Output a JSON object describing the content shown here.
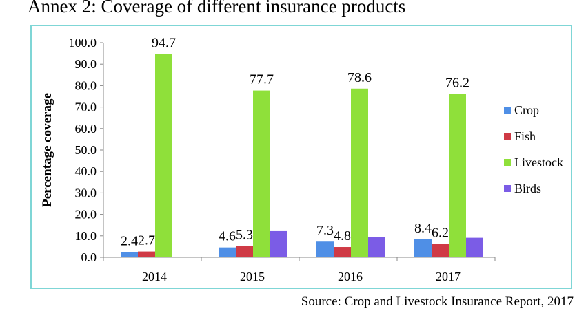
{
  "page": {
    "title": "Annex 2: Coverage of different insurance products",
    "source": "Source: Crop and Livestock Insurance Report, 2017"
  },
  "chart_data": {
    "type": "bar",
    "title": "",
    "xlabel": "",
    "ylabel": "Percentage coverage",
    "categories": [
      "2014",
      "2015",
      "2016",
      "2017"
    ],
    "ylim": [
      0,
      100
    ],
    "yticks": [
      "0.0",
      "10.0",
      "20.0",
      "30.0",
      "40.0",
      "50.0",
      "60.0",
      "70.0",
      "80.0",
      "90.0",
      "100.0"
    ],
    "grid": false,
    "legend_position": "right",
    "series": [
      {
        "name": "Crop",
        "color": "#4f8fe6",
        "values": [
          2.4,
          4.6,
          7.3,
          8.4
        ],
        "labels": [
          "2.4",
          "4.6",
          "7.3",
          "8.4"
        ]
      },
      {
        "name": "Fish",
        "color": "#cf3a45",
        "values": [
          2.7,
          5.3,
          4.8,
          6.2
        ],
        "labels": [
          "2.7",
          "5.3",
          "4.8",
          "6.2"
        ]
      },
      {
        "name": "Livestock",
        "color": "#8fe03a",
        "values": [
          94.7,
          77.7,
          78.6,
          76.2
        ],
        "labels": [
          "94.7",
          "77.7",
          "78.6",
          "76.2"
        ]
      },
      {
        "name": "Birds",
        "color": "#7b5ce6",
        "values": [
          0.3,
          12.2,
          9.4,
          9.1
        ],
        "labels": [
          "",
          "",
          "",
          ""
        ]
      }
    ]
  }
}
